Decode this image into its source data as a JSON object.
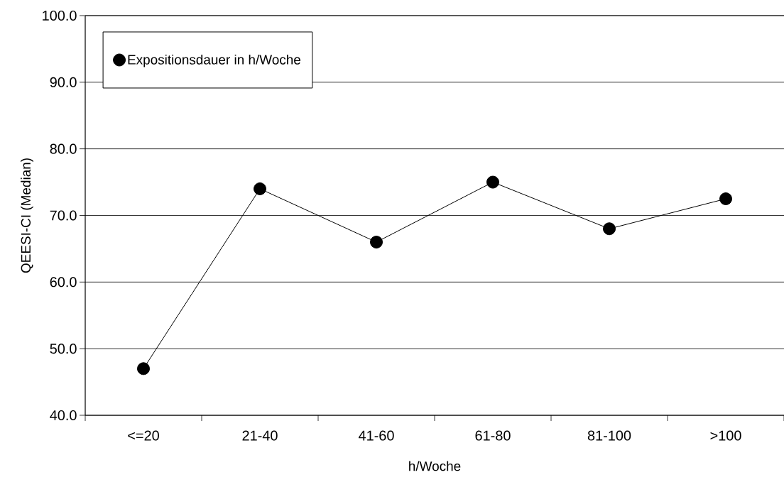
{
  "chart_data": {
    "type": "line",
    "xlabel": "h/Woche",
    "ylabel": "QEESI-CI (Median)",
    "categories": [
      "<=20",
      "21-40",
      "41-60",
      "61-80",
      "81-100",
      ">100"
    ],
    "series": [
      {
        "name": "Expositionsdauer in h/Woche",
        "color": "#000000",
        "values": [
          47,
          74,
          66,
          75,
          68,
          72.5
        ]
      }
    ],
    "ylim": [
      40,
      100
    ],
    "yticks": [
      {
        "value": 40,
        "label": "40.0"
      },
      {
        "value": 50,
        "label": "50.0"
      },
      {
        "value": 60,
        "label": "60.0"
      },
      {
        "value": 70,
        "label": "70.0"
      },
      {
        "value": 80,
        "label": "80.0"
      },
      {
        "value": 90,
        "label": "90.0"
      },
      {
        "value": 100,
        "label": "100.0"
      }
    ],
    "grid": "y",
    "legend": "top left",
    "marker": "circle",
    "line_style": "solid"
  }
}
